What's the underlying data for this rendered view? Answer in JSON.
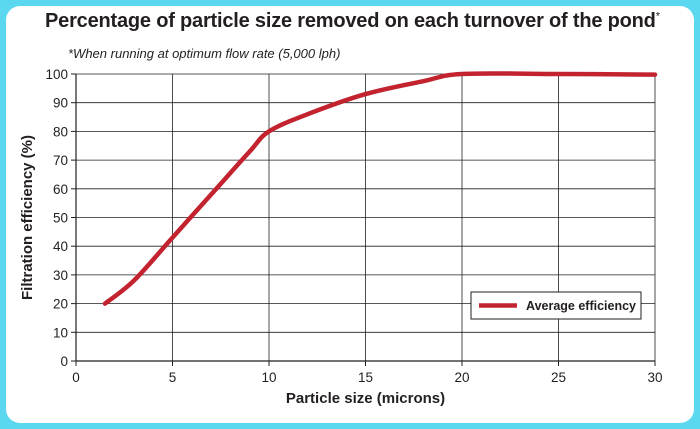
{
  "chart_data": {
    "type": "line",
    "title": "Percentage of particle size removed on each turnover of the pond",
    "title_marker": "*",
    "subtitle": "*When running at optimum flow rate (5,000 lph)",
    "xlabel": "Particle size (microns)",
    "ylabel": "Filtration efficiency (%)",
    "xlim": [
      0,
      30
    ],
    "ylim": [
      0,
      100
    ],
    "xticks": [
      "0",
      "5",
      "10",
      "15",
      "20",
      "25",
      "30"
    ],
    "yticks": [
      "0",
      "10",
      "20",
      "30",
      "40",
      "50",
      "60",
      "70",
      "80",
      "90",
      "100"
    ],
    "grid": true,
    "legend_position": "lower-right",
    "series": [
      {
        "name": "Average efficiency",
        "color": "#c2232f",
        "x": [
          1.5,
          3,
          5,
          7,
          9,
          10,
          12,
          15,
          18,
          20,
          25,
          30
        ],
        "y": [
          20,
          28,
          43,
          58,
          73,
          80,
          86,
          93,
          97.5,
          100,
          100,
          99.8
        ]
      }
    ]
  }
}
